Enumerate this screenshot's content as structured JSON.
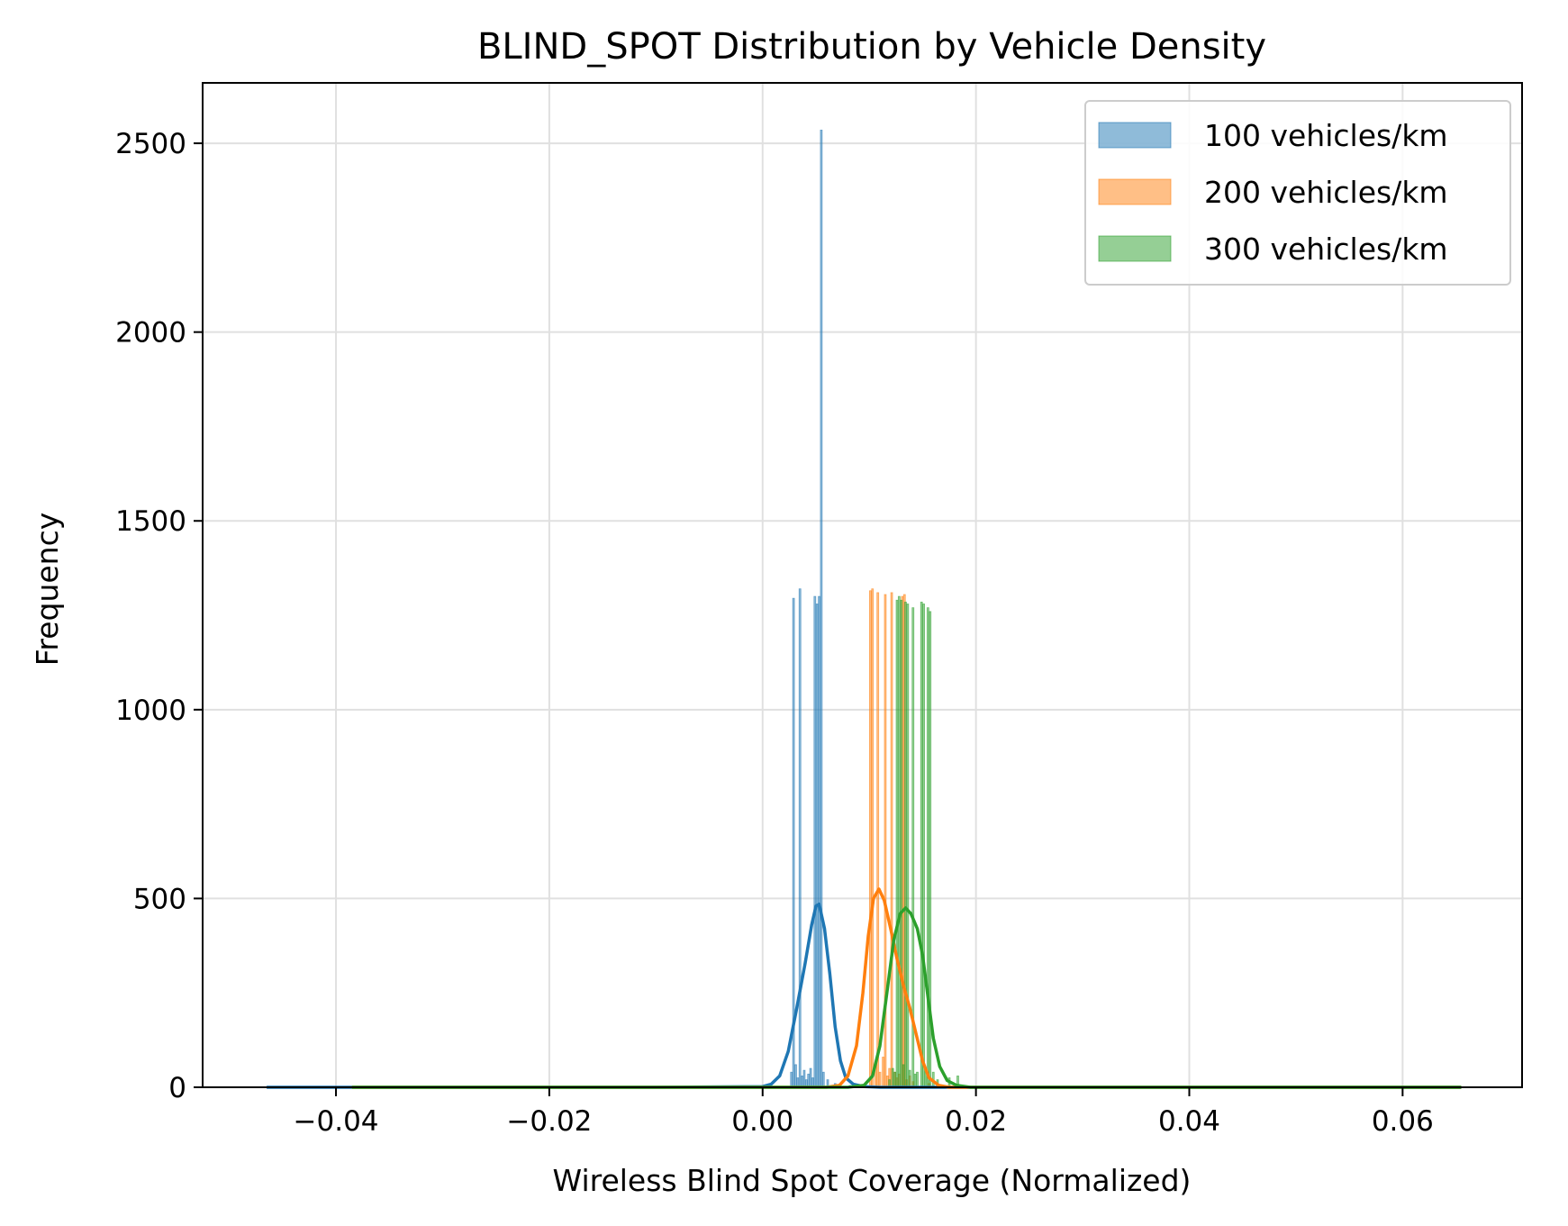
{
  "chart_data": {
    "type": "histogram",
    "title": "BLIND_SPOT Distribution by Vehicle Density",
    "xlabel": "Wireless Blind Spot Coverage (Normalized)",
    "ylabel": "Frequency",
    "xlim": [
      -0.0525,
      0.0712
    ],
    "ylim": [
      0,
      2660
    ],
    "xticks": [
      -0.04,
      -0.02,
      0.0,
      0.02,
      0.04,
      0.06
    ],
    "xtick_labels": [
      "−0.04",
      "−0.02",
      "0.00",
      "0.02",
      "0.04",
      "0.06"
    ],
    "yticks": [
      0,
      500,
      1000,
      1500,
      2000,
      2500
    ],
    "ytick_labels": [
      "0",
      "500",
      "1000",
      "1500",
      "2000",
      "2500"
    ],
    "grid": true,
    "legend_position": "top-right",
    "series": [
      {
        "name": "100 vehicles/km",
        "color": "#1f77b4",
        "bar_width": 0.00012,
        "bars": [
          [
            0.0027,
            40
          ],
          [
            0.0029,
            1295
          ],
          [
            0.0031,
            60
          ],
          [
            0.0033,
            25
          ],
          [
            0.0035,
            1320
          ],
          [
            0.0037,
            30
          ],
          [
            0.0039,
            45
          ],
          [
            0.0041,
            20
          ],
          [
            0.0043,
            35
          ],
          [
            0.0045,
            50
          ],
          [
            0.0047,
            25
          ],
          [
            0.0049,
            1300
          ],
          [
            0.0051,
            1280
          ],
          [
            0.0053,
            1300
          ],
          [
            0.0055,
            2535
          ],
          [
            0.0057,
            40
          ],
          [
            0.0061,
            20
          ],
          [
            0.0068,
            10
          ],
          [
            0.0082,
            5
          ],
          [
            0.0185,
            5
          ]
        ],
        "kde": [
          [
            -0.0465,
            0
          ],
          [
            -0.03,
            0
          ],
          [
            -0.01,
            0
          ],
          [
            0.0,
            2
          ],
          [
            0.0008,
            8
          ],
          [
            0.0016,
            30
          ],
          [
            0.0024,
            95
          ],
          [
            0.0032,
            210
          ],
          [
            0.004,
            330
          ],
          [
            0.0046,
            430
          ],
          [
            0.005,
            480
          ],
          [
            0.0053,
            485
          ],
          [
            0.0058,
            420
          ],
          [
            0.0063,
            300
          ],
          [
            0.0068,
            160
          ],
          [
            0.0073,
            70
          ],
          [
            0.0078,
            25
          ],
          [
            0.0085,
            8
          ],
          [
            0.0095,
            2
          ],
          [
            0.011,
            0
          ],
          [
            0.02,
            0
          ],
          [
            0.04,
            0
          ],
          [
            0.06,
            0
          ],
          [
            0.0655,
            0
          ]
        ]
      },
      {
        "name": "200 vehicles/km",
        "color": "#ff7f0e",
        "bar_width": 0.00012,
        "bars": [
          [
            0.0101,
            1315
          ],
          [
            0.0103,
            1320
          ],
          [
            0.0106,
            60
          ],
          [
            0.0108,
            1310
          ],
          [
            0.011,
            40
          ],
          [
            0.0113,
            80
          ],
          [
            0.0115,
            1305
          ],
          [
            0.0117,
            30
          ],
          [
            0.0119,
            50
          ],
          [
            0.0121,
            1310
          ],
          [
            0.0124,
            40
          ],
          [
            0.0126,
            25
          ],
          [
            0.0128,
            35
          ],
          [
            0.0131,
            1300
          ],
          [
            0.0133,
            1305
          ],
          [
            0.0135,
            20
          ],
          [
            0.0138,
            30
          ],
          [
            0.0141,
            15
          ],
          [
            0.0156,
            10
          ]
        ],
        "kde": [
          [
            -0.0385,
            0
          ],
          [
            -0.02,
            0
          ],
          [
            0.0,
            0
          ],
          [
            0.006,
            0
          ],
          [
            0.0072,
            5
          ],
          [
            0.008,
            30
          ],
          [
            0.0088,
            110
          ],
          [
            0.0094,
            250
          ],
          [
            0.0099,
            400
          ],
          [
            0.0104,
            500
          ],
          [
            0.0109,
            525
          ],
          [
            0.0114,
            495
          ],
          [
            0.012,
            420
          ],
          [
            0.0126,
            340
          ],
          [
            0.0132,
            270
          ],
          [
            0.0138,
            210
          ],
          [
            0.0144,
            140
          ],
          [
            0.015,
            70
          ],
          [
            0.0156,
            25
          ],
          [
            0.0165,
            5
          ],
          [
            0.0175,
            0
          ],
          [
            0.03,
            0
          ],
          [
            0.05,
            0
          ],
          [
            0.0655,
            0
          ]
        ]
      },
      {
        "name": "300 vehicles/km",
        "color": "#2ca02c",
        "bar_width": 0.00012,
        "bars": [
          [
            0.0119,
            20
          ],
          [
            0.0122,
            50
          ],
          [
            0.0124,
            40
          ],
          [
            0.0126,
            1290
          ],
          [
            0.0128,
            1300
          ],
          [
            0.013,
            1290
          ],
          [
            0.0132,
            60
          ],
          [
            0.0134,
            1285
          ],
          [
            0.0136,
            1280
          ],
          [
            0.0138,
            45
          ],
          [
            0.0141,
            1270
          ],
          [
            0.0143,
            35
          ],
          [
            0.0145,
            40
          ],
          [
            0.0149,
            1285
          ],
          [
            0.0151,
            1280
          ],
          [
            0.0153,
            50
          ],
          [
            0.0155,
            1270
          ],
          [
            0.0157,
            1260
          ],
          [
            0.016,
            40
          ],
          [
            0.0164,
            20
          ],
          [
            0.0175,
            25
          ],
          [
            0.0183,
            30
          ]
        ],
        "kde": [
          [
            -0.0385,
            0
          ],
          [
            -0.02,
            0
          ],
          [
            0.0,
            0
          ],
          [
            0.008,
            0
          ],
          [
            0.0095,
            5
          ],
          [
            0.0103,
            30
          ],
          [
            0.011,
            110
          ],
          [
            0.0117,
            260
          ],
          [
            0.0123,
            390
          ],
          [
            0.0129,
            460
          ],
          [
            0.0134,
            475
          ],
          [
            0.0139,
            460
          ],
          [
            0.0145,
            420
          ],
          [
            0.015,
            350
          ],
          [
            0.0155,
            240
          ],
          [
            0.016,
            130
          ],
          [
            0.0166,
            55
          ],
          [
            0.0173,
            18
          ],
          [
            0.0182,
            5
          ],
          [
            0.0195,
            0
          ],
          [
            0.03,
            0
          ],
          [
            0.05,
            0
          ],
          [
            0.0655,
            0
          ]
        ]
      }
    ]
  }
}
